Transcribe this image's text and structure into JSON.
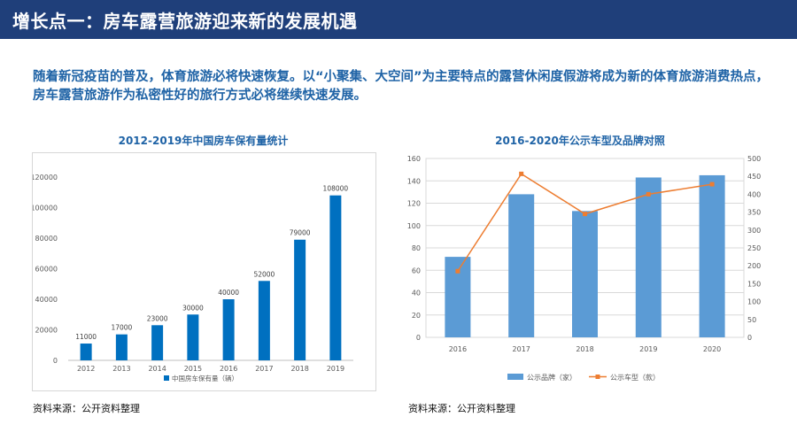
{
  "header": {
    "title": "增长点一：房车露营旅游迎来新的发展机遇"
  },
  "intro": {
    "text": "随着新冠疫苗的普及，体育旅游必将快速恢复。以“小聚集、大空间”为主要特点的露营休闲度假游将成为新的体育旅游消费热点，房车露营旅游作为私密性好的旅行方式必将继续快速发展。"
  },
  "left_chart": {
    "source": "资料来源：公开资料整理"
  },
  "right_chart": {
    "source": "资料来源：公开资料整理"
  },
  "colors": {
    "header": "#1f3f7a",
    "bar_left": "#0070c0",
    "bar_right": "#5b9bd5",
    "line": "#ed7d31",
    "text_blue": "#1f63a6"
  },
  "chart_data": [
    {
      "type": "bar",
      "title": "2012-2019年中国房车保有量统计",
      "categories": [
        "2012",
        "2013",
        "2014",
        "2015",
        "2016",
        "2017",
        "2018",
        "2019"
      ],
      "series": [
        {
          "name": "中国房车保有量（辆）",
          "values": [
            11000,
            17000,
            23000,
            30000,
            40000,
            52000,
            79000,
            108000
          ]
        }
      ],
      "ylim": [
        0,
        120000
      ],
      "yticks": [
        0,
        20000,
        40000,
        60000,
        80000,
        100000,
        120000
      ],
      "data_labels": true,
      "legend": "bottom",
      "grid": false
    },
    {
      "type": "bar",
      "title": "2016-2020年公示车型及品牌对照",
      "categories": [
        "2016",
        "2017",
        "2018",
        "2019",
        "2020"
      ],
      "series": [
        {
          "name": "公示品牌（家）",
          "type": "bar",
          "axis": "left",
          "values": [
            72,
            128,
            113,
            143,
            145
          ]
        },
        {
          "name": "公示车型（款）",
          "type": "line",
          "axis": "right",
          "values": [
            185,
            457,
            345,
            400,
            428
          ]
        }
      ],
      "ylim_left": [
        0,
        160
      ],
      "yticks_left": [
        0,
        20,
        40,
        60,
        80,
        100,
        120,
        140,
        160
      ],
      "ylim_right": [
        0,
        500
      ],
      "yticks_right": [
        0,
        50,
        100,
        150,
        200,
        250,
        300,
        350,
        400,
        450,
        500
      ],
      "legend": "bottom",
      "grid": true
    }
  ]
}
